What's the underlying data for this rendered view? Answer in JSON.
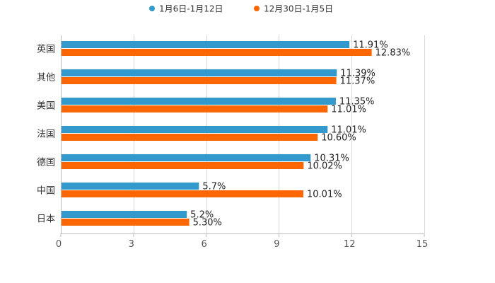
{
  "chart_data": {
    "type": "bar",
    "orientation": "horizontal",
    "categories": [
      "英国",
      "其他",
      "美国",
      "法国",
      "德国",
      "中国",
      "日本"
    ],
    "series": [
      {
        "name": "1月6日-1月12日",
        "color": "#3399cc",
        "values": [
          11.91,
          11.39,
          11.35,
          11.01,
          10.31,
          5.7,
          5.2
        ],
        "labels": [
          "11.91%",
          "11.39%",
          "11.35%",
          "11.01%",
          "10.31%",
          "5.7%",
          "5.2%"
        ]
      },
      {
        "name": "12月30日-1月5日",
        "color": "#ff6600",
        "values": [
          12.83,
          11.37,
          11.01,
          10.6,
          10.02,
          10.01,
          5.3
        ],
        "labels": [
          "12.83%",
          "11.37%",
          "11.01%",
          "10.60%",
          "10.02%",
          "10.01%",
          "5.30%"
        ]
      }
    ],
    "xlim": [
      0,
      15
    ],
    "xticks": [
      "0",
      "3",
      "6",
      "9",
      "12",
      "15"
    ],
    "xtick_values": [
      0,
      3,
      6,
      9,
      12,
      15
    ],
    "grid": true,
    "legend_position": "top-center"
  }
}
